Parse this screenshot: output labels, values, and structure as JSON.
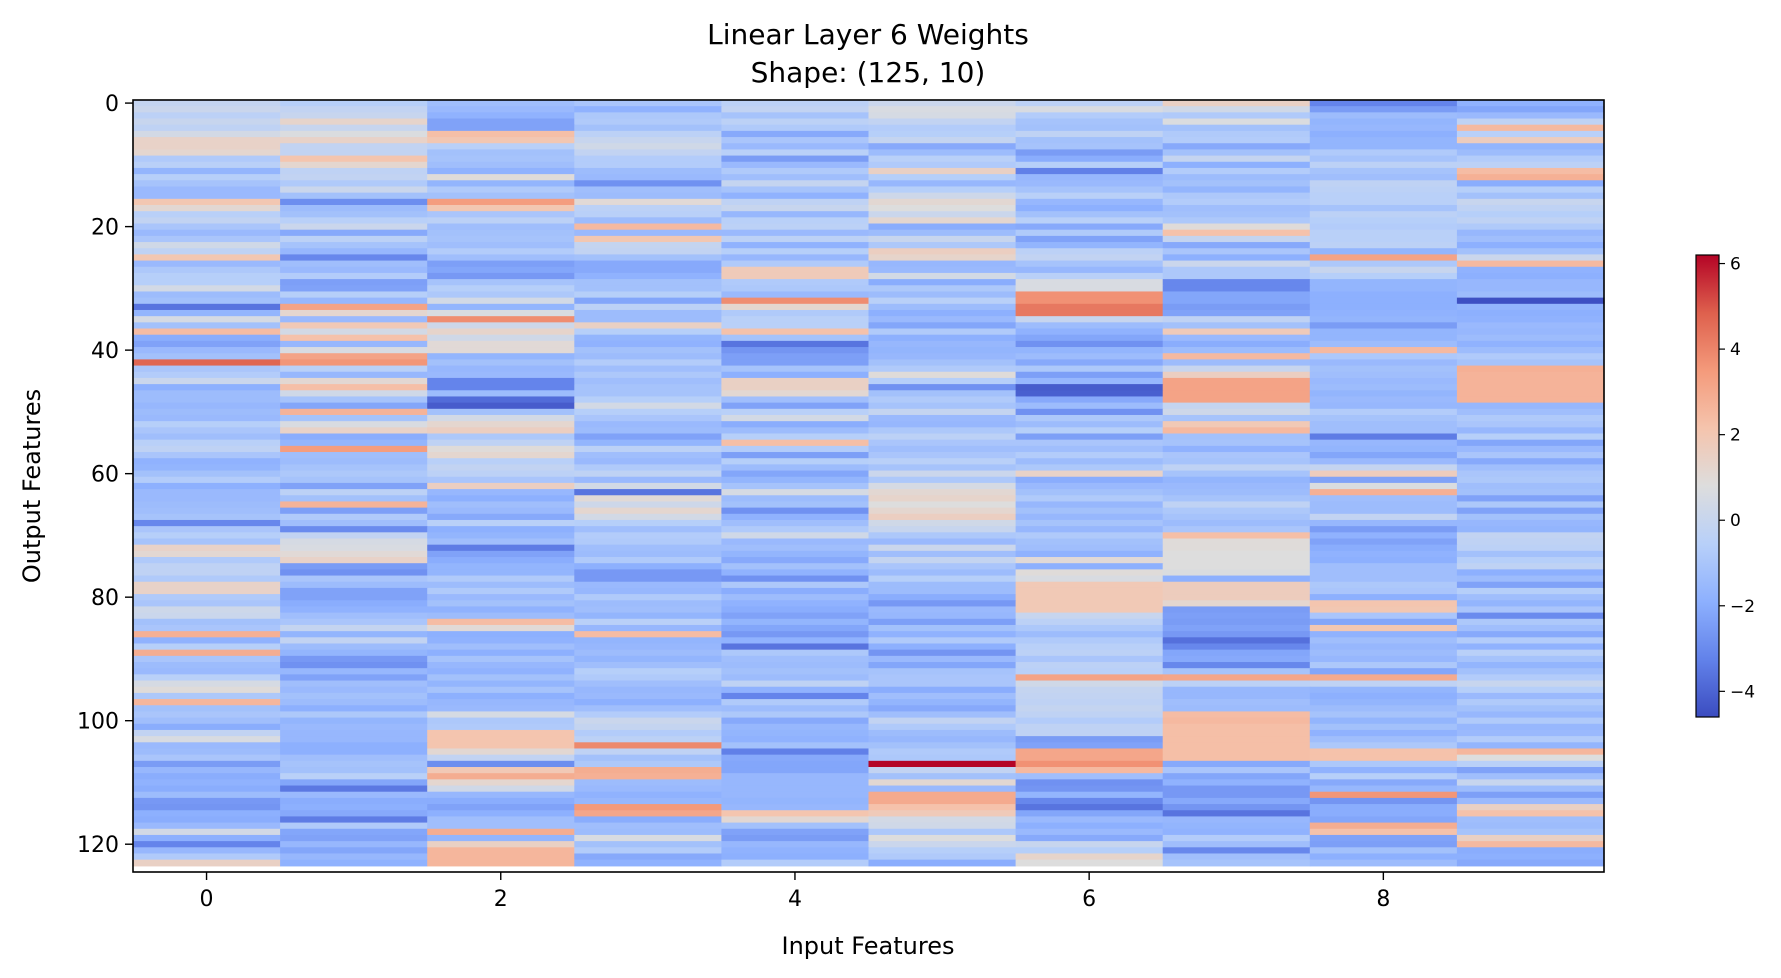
{
  "chart_data": {
    "type": "heatmap",
    "title": "Linear Layer 6 Weights",
    "subtitle": "Shape: (125, 10)",
    "xlabel": "Input Features",
    "ylabel": "Output Features",
    "rows": 125,
    "cols": 10,
    "x_ticks": [
      0,
      2,
      4,
      6,
      8
    ],
    "y_ticks": [
      0,
      20,
      40,
      60,
      80,
      100,
      120
    ],
    "colormap": "coolwarm",
    "vmin": -4.6,
    "vmax": 6.2,
    "colorbar_ticks": [
      6,
      4,
      2,
      0,
      -2,
      -4
    ],
    "colorbar_tick_labels": [
      "6",
      "4",
      "2",
      "0",
      "−2",
      "−4"
    ],
    "colors": {
      "min": "#3b4cc0",
      "mid": "#dddddd",
      "max": "#b40426"
    },
    "values": [
      [
        -0.1,
        -0.6,
        -1.3,
        -1.0,
        -0.4,
        0.1,
        -0.4,
        1.5,
        -3.2,
        -1.8
      ],
      [
        0.1,
        -0.2,
        -1.5,
        -1.8,
        -0.2,
        0.6,
        0.6,
        0.3,
        -2.5,
        -2.2
      ],
      [
        -0.4,
        0.0,
        -1.8,
        -0.9,
        -1.1,
        0.5,
        -0.7,
        -0.8,
        -1.4,
        -1.5
      ],
      [
        0.0,
        1.3,
        -2.3,
        -0.8,
        -0.4,
        -0.2,
        -1.1,
        0.7,
        -1.7,
        -0.3
      ],
      [
        -0.3,
        0.0,
        -2.3,
        -1.2,
        -0.8,
        -0.7,
        -1.2,
        -1.2,
        -1.6,
        2.5
      ],
      [
        0.4,
        0.7,
        2.3,
        -0.4,
        -2.1,
        -0.6,
        -0.3,
        -0.8,
        -1.9,
        -0.5
      ],
      [
        1.4,
        1.4,
        2.0,
        0.0,
        -1.0,
        -0.1,
        -1.2,
        -0.7,
        -1.7,
        1.7
      ],
      [
        1.4,
        -0.2,
        -0.5,
        0.3,
        -1.5,
        -2.1,
        -1.1,
        -2.1,
        -1.7,
        -1.7
      ],
      [
        1.2,
        -0.2,
        -1.2,
        -0.2,
        -0.5,
        -1.4,
        -2.5,
        -1.2,
        -0.8,
        -1.4
      ],
      [
        -0.8,
        2.1,
        -1.1,
        -0.7,
        -2.5,
        -0.5,
        -2.0,
        -0.1,
        -1.1,
        -0.7
      ],
      [
        -0.5,
        1.2,
        -1.3,
        -0.7,
        -1.5,
        -0.8,
        -0.6,
        -1.9,
        -0.4,
        -0.4
      ],
      [
        -1.7,
        -0.3,
        -1.8,
        -1.4,
        -0.8,
        1.5,
        -3.3,
        -0.7,
        -1.1,
        2.4
      ],
      [
        -0.6,
        -0.2,
        0.9,
        -1.5,
        -1.3,
        -0.6,
        -1.6,
        -1.4,
        -1.3,
        2.8
      ],
      [
        -1.1,
        -0.8,
        -1.7,
        -2.8,
        -0.1,
        -1.6,
        -1.5,
        -1.2,
        -0.3,
        -2.0
      ],
      [
        -1.5,
        0.1,
        -0.8,
        -1.3,
        -1.1,
        -0.6,
        -1.1,
        -1.7,
        -0.4,
        -0.6
      ],
      [
        -1.5,
        -1.2,
        -1.2,
        -1.4,
        -1.8,
        0.2,
        -0.5,
        -0.9,
        -0.5,
        -1.2
      ],
      [
        2.0,
        -2.9,
        3.4,
        1.0,
        -0.3,
        1.1,
        -1.6,
        -0.7,
        -0.5,
        0.0
      ],
      [
        1.1,
        -1.4,
        2.0,
        -0.4,
        0.0,
        0.8,
        -1.9,
        -1.3,
        -1.1,
        -0.3
      ],
      [
        -0.5,
        -1.2,
        -1.0,
        -0.5,
        -1.6,
        0.1,
        -1.2,
        -1.2,
        -0.4,
        -0.6
      ],
      [
        -0.2,
        -0.5,
        -0.4,
        -1.4,
        -0.5,
        1.2,
        -0.5,
        -0.9,
        -0.6,
        -0.3
      ],
      [
        -1.0,
        0.1,
        -1.3,
        2.5,
        -0.4,
        -2.0,
        -2.1,
        0.9,
        -0.7,
        -0.8
      ],
      [
        -1.5,
        -2.1,
        -1.2,
        -1.5,
        -1.5,
        -1.4,
        -0.8,
        2.2,
        -0.5,
        -1.6
      ],
      [
        -1.0,
        -0.4,
        -1.1,
        2.0,
        -0.4,
        0.0,
        -2.3,
        -0.1,
        -0.5,
        -1.3
      ],
      [
        0.3,
        -1.1,
        -1.3,
        -0.1,
        -1.8,
        -0.9,
        -1.7,
        -2.1,
        -0.4,
        -1.9
      ],
      [
        -0.3,
        -1.6,
        -0.7,
        -0.2,
        -0.6,
        1.6,
        -0.4,
        -1.0,
        -1.7,
        -1.2
      ],
      [
        2.0,
        -3.1,
        -1.3,
        -1.2,
        -1.6,
        1.3,
        -0.2,
        -1.9,
        3.2,
        0.1
      ],
      [
        -1.5,
        -1.3,
        -2.4,
        -2.1,
        -0.8,
        -1.6,
        -1.1,
        0.1,
        -0.9,
        2.5
      ],
      [
        -0.9,
        -1.5,
        -2.2,
        -2.1,
        1.8,
        -1.5,
        -1.6,
        -0.9,
        0.0,
        -1.8
      ],
      [
        -0.6,
        -0.7,
        -2.6,
        -1.8,
        1.8,
        0.4,
        -0.5,
        -0.9,
        -0.6,
        -1.9
      ],
      [
        -0.6,
        -2.4,
        -1.1,
        -1.2,
        -0.8,
        -2.0,
        0.6,
        -3.1,
        -1.7,
        -1.6
      ],
      [
        0.4,
        -2.3,
        -0.6,
        -1.2,
        -0.9,
        -0.9,
        0.6,
        -3.1,
        -1.7,
        -1.6
      ],
      [
        -1.4,
        -0.6,
        -0.9,
        -0.6,
        -1.5,
        -1.4,
        3.7,
        -2.2,
        -1.9,
        -1.4
      ],
      [
        -1.2,
        -1.6,
        0.4,
        -2.2,
        3.8,
        -0.5,
        3.7,
        -2.2,
        -1.9,
        -4.5
      ],
      [
        -3.6,
        3.2,
        -1.7,
        -0.4,
        1.2,
        -1.4,
        4.3,
        -2.5,
        -1.9,
        -1.7
      ],
      [
        -1.7,
        1.2,
        0.6,
        -1.4,
        -0.8,
        -1.9,
        4.3,
        -2.3,
        -1.8,
        -1.9
      ],
      [
        0.5,
        -1.5,
        3.8,
        -1.4,
        -0.5,
        -1.5,
        0.0,
        -0.3,
        -1.7,
        -1.8
      ],
      [
        -1.2,
        1.9,
        0.2,
        1.5,
        -0.5,
        -2.2,
        -1.4,
        -1.2,
        -2.5,
        -1.5
      ],
      [
        2.4,
        0.4,
        1.3,
        -0.6,
        2.2,
        -0.8,
        -1.8,
        1.8,
        -1.7,
        -1.6
      ],
      [
        -2.0,
        2.2,
        0.3,
        -1.7,
        -1.1,
        -1.9,
        -2.2,
        -1.5,
        -1.7,
        -1.4
      ],
      [
        -2.3,
        -1.6,
        1.0,
        -1.8,
        -3.6,
        -1.6,
        -2.8,
        -2.0,
        -1.4,
        -1.8
      ],
      [
        -1.5,
        0.6,
        1.0,
        -1.2,
        -2.7,
        -1.7,
        -1.7,
        -1.4,
        2.5,
        -1.4
      ],
      [
        -1.2,
        3.2,
        -1.7,
        -1.4,
        -2.4,
        -1.6,
        -1.4,
        2.5,
        -0.9,
        -0.8
      ],
      [
        4.7,
        3.6,
        -1.2,
        -0.7,
        -2.4,
        -1.2,
        -2.1,
        -1.4,
        -1.5,
        -1.1
      ],
      [
        -1.0,
        -0.5,
        -1.6,
        -1.3,
        -1.1,
        -0.8,
        -0.9,
        0.0,
        -1.2,
        2.8
      ],
      [
        -0.7,
        -1.6,
        -1.5,
        -0.9,
        -1.9,
        0.9,
        -2.4,
        1.6,
        -1.3,
        2.7
      ],
      [
        0.1,
        1.1,
        -3.2,
        -1.3,
        1.5,
        -0.6,
        -1.6,
        3.2,
        -1.5,
        2.7
      ],
      [
        -1.9,
        2.3,
        -3.2,
        -1.1,
        1.5,
        -2.8,
        -4.2,
        3.2,
        -1.4,
        2.7
      ],
      [
        -1.4,
        0.3,
        -1.4,
        -1.1,
        1.1,
        -1.2,
        -4.1,
        3.2,
        -1.7,
        2.7
      ],
      [
        -1.4,
        -1.1,
        -3.8,
        -0.6,
        -1.3,
        -0.8,
        -2.1,
        3.2,
        -1.5,
        2.7
      ],
      [
        -1.6,
        -2.2,
        -4.2,
        0.4,
        -2.3,
        -1.1,
        -1.4,
        -0.1,
        -1.6,
        -1.6
      ],
      [
        -1.4,
        2.7,
        -1.2,
        -0.6,
        -0.5,
        -0.1,
        -2.8,
        0.2,
        -0.7,
        -1.3
      ],
      [
        -1.5,
        -1.1,
        0.4,
        -1.0,
        0.4,
        -1.5,
        -0.9,
        -1.1,
        -1.1,
        -0.8
      ],
      [
        -0.6,
        0.6,
        1.2,
        -1.5,
        -2.0,
        -1.6,
        -1.4,
        1.9,
        -1.3,
        -1.0
      ],
      [
        -1.0,
        1.4,
        1.6,
        -1.4,
        -1.4,
        -0.9,
        -0.6,
        2.5,
        -1.3,
        -1.6
      ],
      [
        -1.3,
        -2.0,
        -0.9,
        -2.3,
        -0.6,
        -0.4,
        -2.4,
        -1.2,
        -3.4,
        -0.6
      ],
      [
        -0.5,
        -1.7,
        -0.3,
        -1.7,
        2.3,
        -1.0,
        -1.0,
        -1.1,
        -1.6,
        -2.2
      ],
      [
        -0.3,
        3.4,
        0.9,
        -0.4,
        -0.7,
        -1.3,
        -1.3,
        -1.8,
        -1.7,
        -1.5
      ],
      [
        -1.0,
        -1.3,
        1.2,
        -1.3,
        -2.4,
        -1.0,
        -0.7,
        -1.0,
        -2.2,
        -1.0
      ],
      [
        -1.8,
        -1.4,
        -0.5,
        -1.5,
        -0.6,
        -0.5,
        -1.4,
        -1.1,
        -1.5,
        -2.1
      ],
      [
        -1.7,
        -1.1,
        -0.2,
        -0.8,
        -1.4,
        -1.1,
        -0.9,
        -0.3,
        -0.1,
        -1.3
      ],
      [
        -1.2,
        -0.9,
        -0.4,
        -0.3,
        -2.2,
        0.1,
        1.4,
        -1.1,
        1.7,
        -1.0
      ],
      [
        -0.7,
        -1.1,
        -1.0,
        -1.5,
        -1.7,
        -0.9,
        -2.0,
        -1.7,
        -2.3,
        -0.9
      ],
      [
        -1.9,
        -2.3,
        1.6,
        0.4,
        -1.1,
        0.5,
        -1.5,
        -1.5,
        0.7,
        -1.3
      ],
      [
        -1.5,
        -0.4,
        -1.6,
        -3.6,
        0.5,
        1.1,
        -1.2,
        -1.4,
        2.8,
        -1.2
      ],
      [
        -1.5,
        -1.2,
        -1.9,
        1.0,
        -1.4,
        1.3,
        -0.8,
        -1.1,
        -1.3,
        -2.3
      ],
      [
        -1.4,
        2.7,
        -1.3,
        0.2,
        -1.2,
        0.8,
        -1.6,
        -0.3,
        -1.4,
        -0.9
      ],
      [
        -1.3,
        -2.4,
        -1.5,
        1.2,
        -2.8,
        1.2,
        -1.2,
        -0.9,
        -1.4,
        -2.3
      ],
      [
        -1.1,
        -0.8,
        -2.1,
        0.4,
        -1.8,
        1.6,
        -1.6,
        -1.1,
        -0.2,
        -1.2
      ],
      [
        -3.1,
        -1.3,
        -0.5,
        -0.6,
        -1.3,
        0.3,
        -1.1,
        -1.4,
        -1.6,
        -1.6
      ],
      [
        -1.0,
        -3.0,
        -1.9,
        -1.3,
        -0.8,
        0.0,
        -1.6,
        -1.0,
        -2.5,
        -1.7
      ],
      [
        -0.6,
        -0.2,
        -1.7,
        -0.7,
        0.3,
        -0.9,
        -0.8,
        2.3,
        -1.8,
        -0.2
      ],
      [
        -1.1,
        0.5,
        -1.3,
        -0.8,
        -1.5,
        -1.5,
        -1.2,
        0.9,
        -2.3,
        -0.3
      ],
      [
        1.4,
        0.6,
        -3.4,
        -1.3,
        -1.3,
        0.1,
        -1.3,
        0.9,
        -2.0,
        -0.4
      ],
      [
        1.1,
        1.0,
        -2.3,
        -1.4,
        -1.7,
        -1.3,
        -1.8,
        0.8,
        -1.8,
        -1.2
      ],
      [
        -0.8,
        1.4,
        -2.0,
        -0.8,
        -2.1,
        -0.1,
        1.0,
        0.8,
        -1.9,
        -0.6
      ],
      [
        -0.3,
        -2.5,
        -1.7,
        -1.9,
        -1.2,
        -1.0,
        -1.9,
        0.8,
        -1.3,
        -0.3
      ],
      [
        -0.3,
        -2.8,
        -1.7,
        -2.6,
        -1.8,
        -1.4,
        0.9,
        0.7,
        -1.3,
        -1.9
      ],
      [
        -0.8,
        -1.0,
        -0.8,
        -2.6,
        -2.8,
        -0.6,
        0.6,
        -1.9,
        -1.3,
        -1.4
      ],
      [
        1.4,
        -1.4,
        -1.4,
        -1.5,
        -0.9,
        -1.4,
        1.9,
        1.7,
        -0.9,
        -2.3
      ],
      [
        1.4,
        -2.3,
        -0.8,
        -1.6,
        -2.0,
        -1.4,
        1.9,
        1.7,
        -1.0,
        -0.6
      ],
      [
        -0.8,
        -2.3,
        -1.5,
        -0.8,
        -1.4,
        -2.0,
        1.9,
        1.7,
        -1.9,
        -1.3
      ],
      [
        -1.0,
        -2.0,
        -1.2,
        -1.4,
        -1.8,
        -2.6,
        1.9,
        1.2,
        2.1,
        -1.7
      ],
      [
        0.2,
        -1.8,
        -1.8,
        -1.3,
        -2.0,
        -1.5,
        1.9,
        -2.5,
        2.0,
        -1.0
      ],
      [
        0.1,
        -1.3,
        -1.4,
        -1.7,
        -2.3,
        -1.6,
        0.0,
        -2.4,
        -1.0,
        -3.0
      ],
      [
        -1.2,
        -1.0,
        2.4,
        -0.5,
        -1.7,
        -2.4,
        -0.4,
        -2.5,
        -2.2,
        -0.9
      ],
      [
        -1.0,
        -0.1,
        1.0,
        -1.6,
        -2.2,
        -1.2,
        -0.9,
        -2.3,
        2.0,
        -1.3
      ],
      [
        2.8,
        -1.7,
        -1.9,
        2.4,
        -2.6,
        -1.8,
        -1.4,
        -2.6,
        -1.8,
        -2.1
      ],
      [
        -1.8,
        -0.2,
        -1.8,
        -1.7,
        -1.8,
        -0.8,
        -0.8,
        -3.7,
        -1.3,
        -0.7
      ],
      [
        -0.6,
        -1.4,
        -1.3,
        -1.6,
        -3.6,
        -1.9,
        -0.5,
        -3.1,
        -1.6,
        -1.8
      ],
      [
        2.9,
        -1.7,
        -1.9,
        -1.4,
        -0.9,
        -2.7,
        -0.4,
        -2.2,
        -1.4,
        -0.5
      ],
      [
        -1.0,
        -2.6,
        -1.1,
        -1.7,
        -1.3,
        -1.5,
        -1.0,
        -2.1,
        -1.6,
        -1.1
      ],
      [
        -1.4,
        -2.8,
        -1.6,
        -1.3,
        -1.4,
        -2.2,
        -0.4,
        -3.1,
        -0.9,
        -1.7
      ],
      [
        -1.5,
        -1.6,
        -1.8,
        -0.6,
        -1.2,
        -1.1,
        -0.5,
        -1.1,
        -2.2,
        -1.2
      ],
      [
        -0.5,
        -2.3,
        -1.2,
        -0.8,
        -1.4,
        -1.0,
        3.2,
        3.1,
        3.0,
        -0.7
      ],
      [
        0.5,
        -1.3,
        -1.7,
        -1.3,
        -0.3,
        -1.0,
        0.3,
        -0.4,
        -0.3,
        0.0
      ],
      [
        0.9,
        -1.5,
        -1.1,
        -1.6,
        -1.8,
        -2.0,
        -0.1,
        -1.6,
        -1.7,
        -0.6
      ],
      [
        -0.9,
        -1.2,
        -1.9,
        -1.5,
        -3.2,
        -1.3,
        -0.2,
        -1.6,
        -1.9,
        -1.5
      ],
      [
        2.6,
        -1.4,
        -1.6,
        -1.9,
        -0.8,
        -1.7,
        -0.3,
        -1.3,
        -1.7,
        -0.8
      ],
      [
        -1.2,
        -1.9,
        -1.5,
        -1.3,
        -1.4,
        -2.1,
        -0.1,
        -1.4,
        -1.4,
        -1.2
      ],
      [
        -1.0,
        -0.9,
        0.5,
        -0.7,
        -0.9,
        -1.3,
        -0.3,
        2.4,
        -1.1,
        -1.6
      ],
      [
        -1.3,
        -1.7,
        -0.9,
        0.1,
        -2.1,
        -0.2,
        -0.7,
        2.5,
        -1.7,
        -0.8
      ],
      [
        -2.0,
        -1.5,
        -0.8,
        -0.1,
        -1.6,
        -0.8,
        -0.3,
        2.3,
        -1.2,
        -1.6
      ],
      [
        -0.2,
        -1.6,
        2.1,
        -0.7,
        -1.7,
        -1.4,
        -0.3,
        2.3,
        -1.8,
        -1.5
      ],
      [
        0.6,
        -1.6,
        2.1,
        -0.4,
        -1.8,
        -1.6,
        -2.5,
        2.3,
        -1.3,
        -0.7
      ],
      [
        -1.5,
        -1.9,
        2.1,
        3.9,
        -1.2,
        -1.2,
        -2.3,
        2.3,
        -0.9,
        -1.7
      ],
      [
        -1.4,
        -1.9,
        1.1,
        -0.3,
        -3.3,
        -0.8,
        3.1,
        2.3,
        2.2,
        2.6
      ],
      [
        -1.0,
        -1.3,
        -0.2,
        -1.2,
        -2.1,
        -0.9,
        3.1,
        2.3,
        2.2,
        0.8
      ],
      [
        -2.5,
        -1.1,
        -2.9,
        -0.9,
        -2.2,
        6.2,
        3.7,
        -2.1,
        -0.9,
        -0.5
      ],
      [
        -1.6,
        -1.2,
        1.9,
        2.9,
        -2.2,
        -0.2,
        2.5,
        -1.0,
        -1.8,
        -2.3
      ],
      [
        -2.0,
        -0.5,
        2.9,
        2.8,
        -1.6,
        -1.2,
        -1.3,
        -2.2,
        -0.6,
        -1.3
      ],
      [
        -1.8,
        -2.2,
        1.2,
        -1.4,
        -1.6,
        1.1,
        -2.8,
        -1.8,
        -2.1,
        0.0
      ],
      [
        -2.0,
        -3.5,
        0.3,
        -1.5,
        -1.6,
        -1.5,
        -2.7,
        -2.6,
        -1.6,
        -1.4
      ],
      [
        -1.4,
        -1.5,
        -1.6,
        -1.8,
        -1.6,
        3.0,
        -1.7,
        -2.6,
        3.6,
        -2.4
      ],
      [
        -2.6,
        -2.0,
        -2.0,
        -1.6,
        -1.7,
        3.0,
        -3.1,
        -2.1,
        -2.7,
        -1.5
      ],
      [
        -2.7,
        -1.9,
        -2.3,
        3.5,
        -1.6,
        2.2,
        -3.6,
        -2.7,
        -2.0,
        1.5
      ],
      [
        -1.9,
        -2.1,
        -1.9,
        3.1,
        2.1,
        1.8,
        -2.2,
        -3.6,
        -2.0,
        2.2
      ],
      [
        -2.0,
        -3.4,
        -1.3,
        -2.0,
        1.1,
        0.4,
        -1.5,
        -1.6,
        -2.2,
        -1.3
      ],
      [
        -1.5,
        -0.8,
        -1.3,
        -1.3,
        -1.2,
        0.3,
        -1.9,
        -1.7,
        2.9,
        -1.4
      ],
      [
        0.4,
        -2.2,
        2.9,
        -1.4,
        -2.3,
        -0.9,
        -1.5,
        -1.8,
        2.2,
        -1.1
      ],
      [
        -1.9,
        -2.3,
        -1.7,
        0.6,
        -2.5,
        0.8,
        -2.1,
        -0.7,
        -2.3,
        1.5
      ],
      [
        -3.2,
        -1.6,
        1.5,
        -1.2,
        -1.6,
        0.1,
        0.0,
        -1.3,
        -2.4,
        2.5
      ],
      [
        -1.6,
        -2.2,
        2.6,
        -0.7,
        -1.8,
        -0.6,
        -0.6,
        -3.1,
        -1.2,
        -2.0
      ],
      [
        -0.8,
        -1.6,
        2.6,
        -2.1,
        -1.9,
        -0.8,
        1.3,
        -1.3,
        -1.9,
        -1.9
      ],
      [
        1.5,
        -1.8,
        2.6,
        -1.8,
        -0.7,
        -2.0,
        0.8,
        -1.1,
        -1.4,
        -2.1
      ]
    ]
  }
}
